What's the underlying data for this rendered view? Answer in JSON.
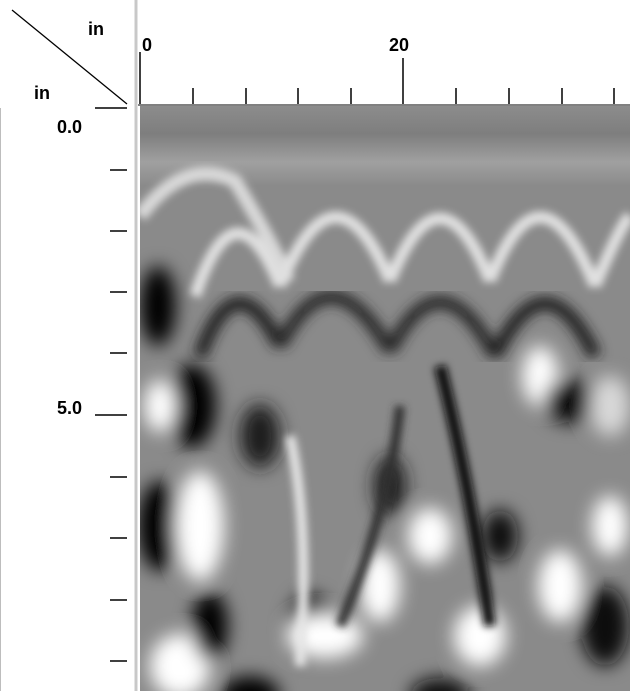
{
  "corner": {
    "x_unit": "in",
    "y_unit": "in"
  },
  "top_ruler": {
    "unit": "in",
    "labels": [
      {
        "value": 0,
        "text": "0"
      },
      {
        "value": 20,
        "text": "20"
      }
    ]
  },
  "left_ruler": {
    "unit": "in",
    "labels": [
      {
        "value": 0.0,
        "text": "0.0"
      },
      {
        "value": 5.0,
        "text": "5.0"
      }
    ]
  },
  "radargram": {
    "description_colors": {
      "background": "#8a8a8a",
      "dark": "#000000",
      "light": "#ffffff"
    }
  }
}
